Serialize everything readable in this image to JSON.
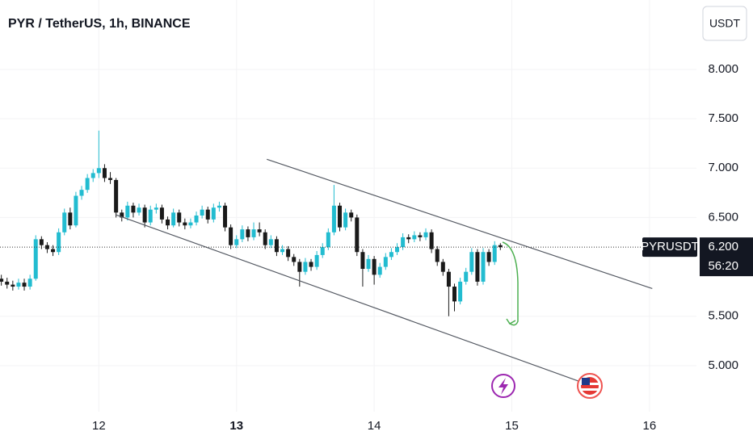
{
  "chart_data": {
    "type": "candlestick",
    "title": "PYR / TetherUS, 1h, BINANCE",
    "currency": "USDT",
    "up_color": "#22bcd0",
    "down_color": "#1a1a1a",
    "grid": true,
    "x": [
      11.2917,
      11.3333,
      11.375,
      11.4167,
      11.4583,
      11.5,
      11.5417,
      11.5833,
      11.625,
      11.6667,
      11.7083,
      11.75,
      11.7917,
      11.8333,
      11.875,
      11.9167,
      11.9583,
      12.0,
      12.0417,
      12.0833,
      12.125,
      12.1667,
      12.2083,
      12.25,
      12.2917,
      12.3333,
      12.375,
      12.4167,
      12.4583,
      12.5,
      12.5417,
      12.5833,
      12.625,
      12.6667,
      12.7083,
      12.75,
      12.7917,
      12.8333,
      12.875,
      12.9167,
      12.9583,
      13.0,
      13.0417,
      13.0833,
      13.125,
      13.1667,
      13.2083,
      13.25,
      13.2917,
      13.3333,
      13.375,
      13.4167,
      13.4583,
      13.5,
      13.5417,
      13.5833,
      13.625,
      13.6667,
      13.7083,
      13.75,
      13.7917,
      13.8333,
      13.875,
      13.9167,
      13.9583,
      14.0,
      14.0417,
      14.0833,
      14.125,
      14.1667,
      14.2083,
      14.25,
      14.2917,
      14.3333,
      14.375,
      14.4167,
      14.4583,
      14.5,
      14.5417,
      14.5833,
      14.625,
      14.6667,
      14.7083,
      14.75,
      14.7917,
      14.8333,
      14.875,
      14.9167
    ],
    "open": [
      5.88,
      5.85,
      5.82,
      5.8,
      5.84,
      5.8,
      5.88,
      6.28,
      6.22,
      6.18,
      6.15,
      6.35,
      6.55,
      6.42,
      6.72,
      6.78,
      6.9,
      6.95,
      7.0,
      6.9,
      6.88,
      6.55,
      6.5,
      6.62,
      6.55,
      6.6,
      6.45,
      6.58,
      6.6,
      6.48,
      6.42,
      6.55,
      6.45,
      6.42,
      6.45,
      6.52,
      6.58,
      6.48,
      6.6,
      6.62,
      6.4,
      6.22,
      6.28,
      6.38,
      6.3,
      6.38,
      6.35,
      6.22,
      6.28,
      6.15,
      6.18,
      6.1,
      6.05,
      5.95,
      6.05,
      6.0,
      6.12,
      6.2,
      6.35,
      6.62,
      6.4,
      6.55,
      6.5,
      6.15,
      5.98,
      6.08,
      5.92,
      6.0,
      6.1,
      6.15,
      6.2,
      6.3,
      6.28,
      6.32,
      6.3,
      6.35,
      6.18,
      6.05,
      5.95,
      5.8,
      5.65,
      5.85,
      5.95,
      6.15,
      5.85,
      6.15,
      6.05,
      6.22
    ],
    "high": [
      5.92,
      5.89,
      5.86,
      5.88,
      5.88,
      5.92,
      6.32,
      6.31,
      6.25,
      6.22,
      6.39,
      6.59,
      6.6,
      6.76,
      6.82,
      6.94,
      6.99,
      7.38,
      7.04,
      6.96,
      6.9,
      6.58,
      6.66,
      6.65,
      6.64,
      6.63,
      6.62,
      6.64,
      6.63,
      6.51,
      6.59,
      6.58,
      6.49,
      6.49,
      6.56,
      6.62,
      6.61,
      6.64,
      6.66,
      6.65,
      6.43,
      6.32,
      6.42,
      6.41,
      6.45,
      6.45,
      6.38,
      6.32,
      6.31,
      6.22,
      6.21,
      6.13,
      6.08,
      6.09,
      6.08,
      6.16,
      6.24,
      6.39,
      6.83,
      6.65,
      6.59,
      6.58,
      6.53,
      6.18,
      6.12,
      6.11,
      6.04,
      6.14,
      6.19,
      6.24,
      6.34,
      6.33,
      6.36,
      6.35,
      6.39,
      6.38,
      6.21,
      6.08,
      5.98,
      5.83,
      5.89,
      5.99,
      6.19,
      6.18,
      6.19,
      6.18,
      6.26,
      6.24
    ],
    "low": [
      5.81,
      5.78,
      5.76,
      5.77,
      5.76,
      5.77,
      5.86,
      6.18,
      6.14,
      6.11,
      6.12,
      6.32,
      6.38,
      6.4,
      6.68,
      6.75,
      6.86,
      6.9,
      6.86,
      6.84,
      6.5,
      6.46,
      6.47,
      6.5,
      6.52,
      6.4,
      6.42,
      6.54,
      6.44,
      6.38,
      6.4,
      6.41,
      6.38,
      6.39,
      6.42,
      6.49,
      6.44,
      6.45,
      6.56,
      6.36,
      6.18,
      6.19,
      6.25,
      6.26,
      6.27,
      6.31,
      6.18,
      6.19,
      6.11,
      6.12,
      6.06,
      6.01,
      5.8,
      5.92,
      5.96,
      5.97,
      6.09,
      6.17,
      6.32,
      6.36,
      6.37,
      6.46,
      6.11,
      5.8,
      5.95,
      5.82,
      5.89,
      5.97,
      6.07,
      6.12,
      6.17,
      6.24,
      6.25,
      6.26,
      6.27,
      6.14,
      6.01,
      5.91,
      5.5,
      5.55,
      5.62,
      5.82,
      5.92,
      5.81,
      5.82,
      6.01,
      6.02,
      6.17
    ],
    "close": [
      5.85,
      5.82,
      5.8,
      5.84,
      5.8,
      5.88,
      6.28,
      6.22,
      6.18,
      6.15,
      6.35,
      6.55,
      6.42,
      6.72,
      6.78,
      6.9,
      6.95,
      7.0,
      6.9,
      6.88,
      6.55,
      6.5,
      6.62,
      6.55,
      6.6,
      6.45,
      6.58,
      6.6,
      6.48,
      6.42,
      6.55,
      6.45,
      6.42,
      6.45,
      6.52,
      6.58,
      6.48,
      6.6,
      6.62,
      6.4,
      6.22,
      6.28,
      6.38,
      6.3,
      6.38,
      6.35,
      6.22,
      6.28,
      6.15,
      6.18,
      6.1,
      6.05,
      5.95,
      6.05,
      6.0,
      6.12,
      6.2,
      6.35,
      6.62,
      6.4,
      6.55,
      6.5,
      6.15,
      5.98,
      6.08,
      5.92,
      6.0,
      6.1,
      6.15,
      6.2,
      6.3,
      6.28,
      6.32,
      6.3,
      6.35,
      6.18,
      6.05,
      5.95,
      5.8,
      5.65,
      5.85,
      5.95,
      6.15,
      5.85,
      6.15,
      6.05,
      6.22,
      6.2
    ],
    "xlim": [
      11.282,
      16.341
    ],
    "xticks": [
      12,
      13,
      14,
      15,
      16
    ],
    "ylim": [
      4.533,
      8.703
    ],
    "yticks": [
      {
        "value": 5,
        "label": "5.000"
      },
      {
        "value": 5.5,
        "label": "5.500"
      },
      {
        "value": 6.5,
        "label": "6.500"
      },
      {
        "value": 7,
        "label": "7.000"
      },
      {
        "value": 7.5,
        "label": "7.500"
      },
      {
        "value": 8,
        "label": "8.000"
      }
    ],
    "last_price": {
      "symbol": "PYRUSDT",
      "value": 6.2,
      "label": "6.200",
      "countdown": "56:20"
    },
    "trendlines": [
      {
        "points": [
          [
            13.22,
            7.09
          ],
          [
            16.02,
            5.78
          ]
        ]
      },
      {
        "points": [
          [
            12.12,
            6.53
          ],
          [
            15.61,
            4.78
          ]
        ]
      }
    ]
  }
}
